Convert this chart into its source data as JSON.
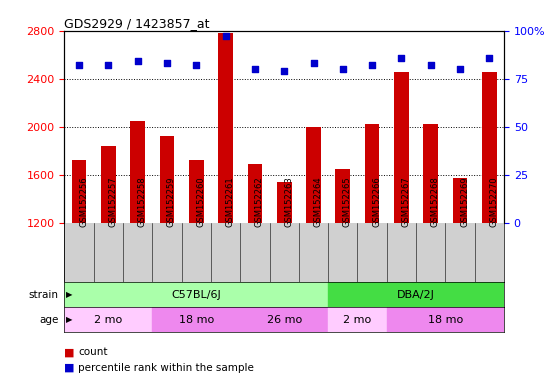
{
  "title": "GDS2929 / 1423857_at",
  "samples": [
    "GSM152256",
    "GSM152257",
    "GSM152258",
    "GSM152259",
    "GSM152260",
    "GSM152261",
    "GSM152262",
    "GSM152263",
    "GSM152264",
    "GSM152265",
    "GSM152266",
    "GSM152267",
    "GSM152268",
    "GSM152269",
    "GSM152270"
  ],
  "counts": [
    1720,
    1840,
    2050,
    1920,
    1720,
    2780,
    1690,
    1540,
    2000,
    1650,
    2020,
    2460,
    2020,
    1570,
    2460
  ],
  "percentile_ranks": [
    82,
    82,
    84,
    83,
    82,
    97,
    80,
    79,
    83,
    80,
    82,
    86,
    82,
    80,
    86
  ],
  "ylim_left": [
    1200,
    2800
  ],
  "ylim_right": [
    0,
    100
  ],
  "yticks_left": [
    1200,
    1600,
    2000,
    2400,
    2800
  ],
  "yticks_right": [
    0,
    25,
    50,
    75,
    100
  ],
  "bar_color": "#cc0000",
  "dot_color": "#0000cc",
  "grid_color": "#000000",
  "strain_groups": [
    {
      "label": "C57BL/6J",
      "start": 0,
      "end": 9,
      "color": "#aaffaa"
    },
    {
      "label": "DBA/2J",
      "start": 9,
      "end": 15,
      "color": "#44dd44"
    }
  ],
  "age_groups": [
    {
      "label": "2 mo",
      "start": 0,
      "end": 3,
      "color": "#ffccff"
    },
    {
      "label": "18 mo",
      "start": 3,
      "end": 6,
      "color": "#ee88ee"
    },
    {
      "label": "26 mo",
      "start": 6,
      "end": 9,
      "color": "#ee88ee"
    },
    {
      "label": "2 mo",
      "start": 9,
      "end": 11,
      "color": "#ffccff"
    },
    {
      "label": "18 mo",
      "start": 11,
      "end": 15,
      "color": "#ee88ee"
    }
  ],
  "legend_items": [
    {
      "label": "count",
      "color": "#cc0000"
    },
    {
      "label": "percentile rank within the sample",
      "color": "#0000cc"
    }
  ],
  "bg_color": "#d0d0d0",
  "plot_bg": "#ffffff",
  "label_area_color": "#ffffff"
}
